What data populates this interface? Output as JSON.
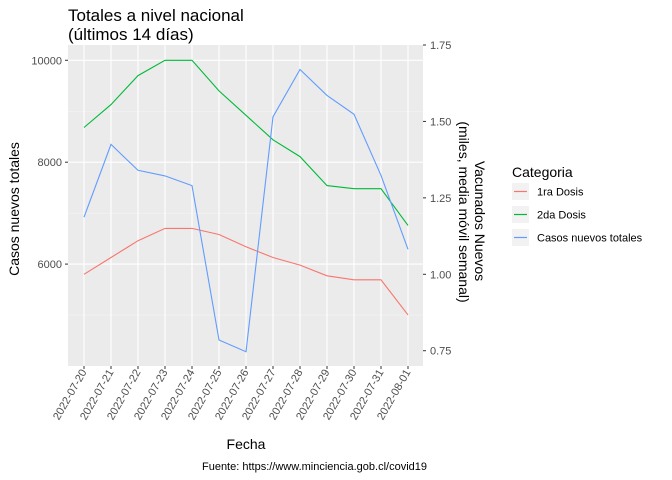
{
  "chart_data": {
    "type": "line",
    "title": "Totales a nivel nacional",
    "subtitle": "(últimos 14 días)",
    "xlabel": "Fecha",
    "ylabel_left": "Casos nuevos totales",
    "ylabel_right_line1": "Vacunados Nuevos",
    "ylabel_right_line2": "(miles, media móvil semanal)",
    "caption": "Fuente: https://www.minciencia.gob.cl/covid19",
    "legend_title": "Categoria",
    "legend_position": "right",
    "grid": true,
    "ylim_left": [
      4000,
      10300
    ],
    "ylim_right": [
      0.7,
      1.75
    ],
    "left_ticks": [
      6000,
      8000,
      10000
    ],
    "right_ticks": [
      0.75,
      1.0,
      1.25,
      1.5,
      1.75
    ],
    "right_tick_labels": [
      "0.75",
      "1.00",
      "1.25",
      "1.50",
      "1.75"
    ],
    "categories": [
      "2022-07-20",
      "2022-07-21",
      "2022-07-22",
      "2022-07-23",
      "2022-07-24",
      "2022-07-25",
      "2022-07-26",
      "2022-07-27",
      "2022-07-28",
      "2022-07-29",
      "2022-07-30",
      "2022-07-31",
      "2022-08-01"
    ],
    "series": [
      {
        "name": "1ra Dosis",
        "axis": "right",
        "color": "#F8766D",
        "values": [
          1.0,
          1.055,
          1.11,
          1.15,
          1.15,
          1.13,
          1.09,
          1.055,
          1.03,
          0.995,
          0.982,
          0.982,
          0.867
        ]
      },
      {
        "name": "2da Dosis",
        "axis": "right",
        "color": "#00BA38",
        "values": [
          1.48,
          1.555,
          1.65,
          1.7,
          1.7,
          1.6,
          1.52,
          1.44,
          1.385,
          1.29,
          1.28,
          1.28,
          1.16
        ]
      },
      {
        "name": "Casos nuevos totales",
        "axis": "left",
        "color": "#619CFF",
        "values": [
          6920,
          8350,
          7840,
          7730,
          7540,
          4510,
          4280,
          8890,
          9820,
          9310,
          8940,
          7740,
          6290
        ]
      }
    ]
  }
}
